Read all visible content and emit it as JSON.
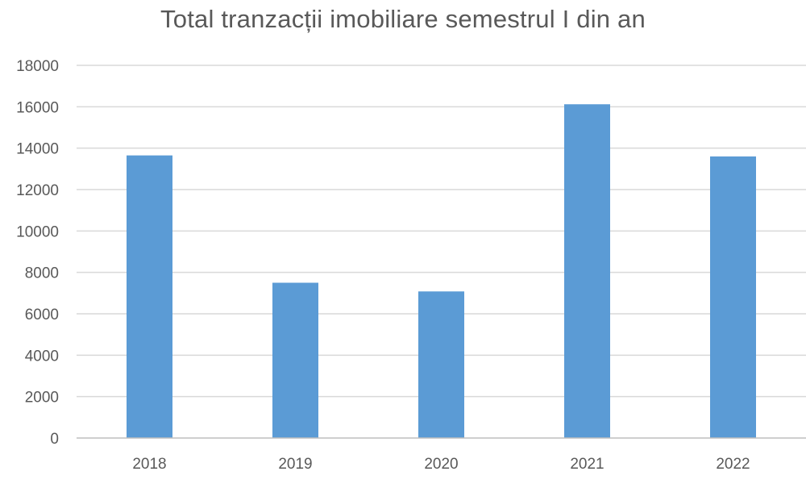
{
  "chart_data": {
    "type": "bar",
    "title": "Total tranzacții imobiliare semestrul I din an",
    "categories": [
      "2018",
      "2019",
      "2020",
      "2021",
      "2022"
    ],
    "values": [
      13650,
      7500,
      7080,
      16120,
      13600
    ],
    "xlabel": "",
    "ylabel": "",
    "ylim": [
      0,
      18000
    ],
    "yticks": [
      0,
      2000,
      4000,
      6000,
      8000,
      10000,
      12000,
      14000,
      16000,
      18000
    ],
    "grid": true,
    "legend": "none",
    "colors": {
      "bar": "#5b9bd5",
      "grid": "#d9d9d9",
      "text": "#595959"
    }
  }
}
